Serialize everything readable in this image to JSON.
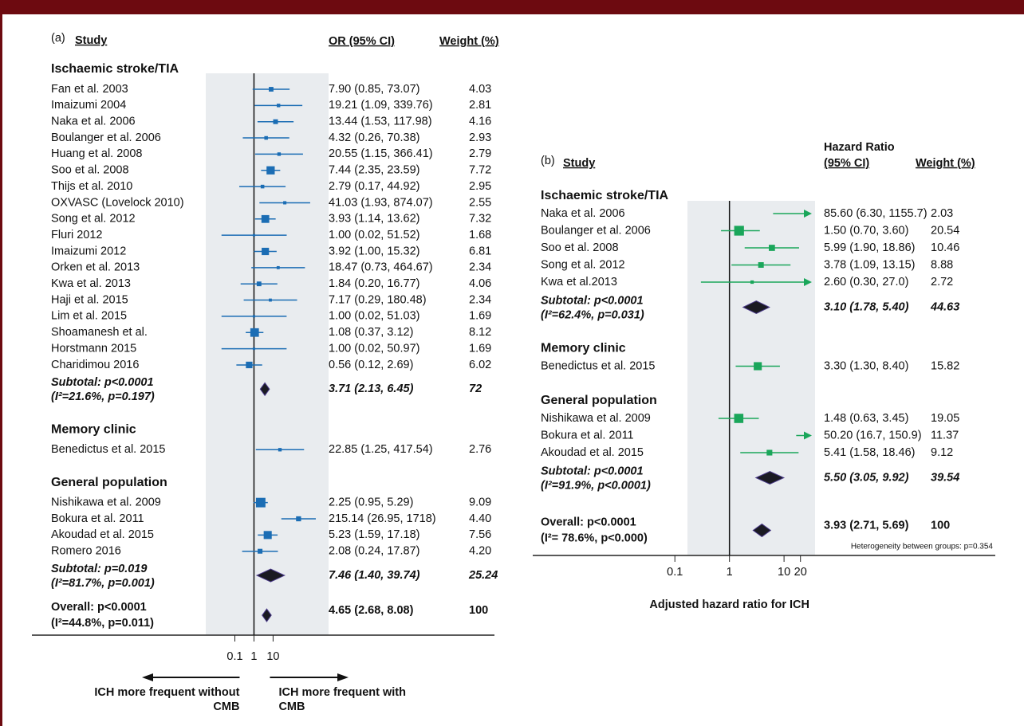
{
  "chart_data": [
    {
      "type": "forest",
      "panel_label": "(a)",
      "study_header": "Study",
      "estimate_header": [
        "OR (95% CI)"
      ],
      "weight_header": "Weight (%)",
      "color": "#1b6db4",
      "log_scale": true,
      "xlim": [
        0.003,
        8000
      ],
      "xticks": [
        0.1,
        1,
        10
      ],
      "reference": 1,
      "groups": [
        {
          "name": "Ischaemic stroke/TIA",
          "rows": [
            {
              "study": "Fan et al. 2003",
              "estimate": 7.9,
              "lo": 0.85,
              "hi": 73.07,
              "ci_label": "7.90 (0.85, 73.07)",
              "weight": 4.03
            },
            {
              "study": "Imaizumi 2004",
              "estimate": 19.21,
              "lo": 1.09,
              "hi": 339.76,
              "ci_label": "19.21 (1.09, 339.76)",
              "weight": 2.81
            },
            {
              "study": "Naka et al. 2006",
              "estimate": 13.44,
              "lo": 1.53,
              "hi": 117.98,
              "ci_label": "13.44 (1.53, 117.98)",
              "weight": 4.16
            },
            {
              "study": "Boulanger et al. 2006",
              "estimate": 4.32,
              "lo": 0.26,
              "hi": 70.38,
              "ci_label": "4.32 (0.26, 70.38)",
              "weight": 2.93
            },
            {
              "study": "Huang et al. 2008",
              "estimate": 20.55,
              "lo": 1.15,
              "hi": 366.41,
              "ci_label": "20.55 (1.15, 366.41)",
              "weight": 2.79
            },
            {
              "study": "Soo et al. 2008",
              "estimate": 7.44,
              "lo": 2.35,
              "hi": 23.59,
              "ci_label": "7.44 (2.35, 23.59)",
              "weight": 7.72
            },
            {
              "study": "Thijs et al. 2010",
              "estimate": 2.79,
              "lo": 0.17,
              "hi": 44.92,
              "ci_label": "2.79 (0.17, 44.92)",
              "weight": 2.95
            },
            {
              "study": "OXVASC (Lovelock 2010)",
              "estimate": 41.03,
              "lo": 1.93,
              "hi": 874.07,
              "ci_label": "41.03 (1.93, 874.07)",
              "weight": 2.55
            },
            {
              "study": "Song et al. 2012",
              "estimate": 3.93,
              "lo": 1.14,
              "hi": 13.62,
              "ci_label": "3.93 (1.14, 13.62)",
              "weight": 7.32
            },
            {
              "study": "Fluri 2012",
              "estimate": 1.0,
              "lo": 0.02,
              "hi": 51.52,
              "ci_label": "1.00 (0.02, 51.52)",
              "weight": 1.68
            },
            {
              "study": "Imaizumi 2012",
              "estimate": 3.92,
              "lo": 1.0,
              "hi": 15.32,
              "ci_label": "3.92 (1.00, 15.32)",
              "weight": 6.81
            },
            {
              "study": "Orken et al. 2013",
              "estimate": 18.47,
              "lo": 0.73,
              "hi": 464.67,
              "ci_label": "18.47 (0.73, 464.67)",
              "weight": 2.34
            },
            {
              "study": "Kwa et al. 2013",
              "estimate": 1.84,
              "lo": 0.2,
              "hi": 16.77,
              "ci_label": "1.84 (0.20, 16.77)",
              "weight": 4.06
            },
            {
              "study": "Haji et al. 2015",
              "estimate": 7.17,
              "lo": 0.29,
              "hi": 180.48,
              "ci_label": "7.17 (0.29, 180.48)",
              "weight": 2.34
            },
            {
              "study": "Lim et al. 2015",
              "estimate": 1.0,
              "lo": 0.02,
              "hi": 51.03,
              "ci_label": "1.00 (0.02, 51.03)",
              "weight": 1.69
            },
            {
              "study": "Shoamanesh et al.",
              "estimate": 1.08,
              "lo": 0.37,
              "hi": 3.12,
              "ci_label": "1.08 (0.37, 3.12)",
              "weight": 8.12
            },
            {
              "study": "Horstmann 2015",
              "estimate": 1.0,
              "lo": 0.02,
              "hi": 50.97,
              "ci_label": "1.00 (0.02, 50.97)",
              "weight": 1.69
            },
            {
              "study": "Charidimou 2016",
              "estimate": 0.56,
              "lo": 0.12,
              "hi": 2.69,
              "ci_label": "0.56 (0.12, 2.69)",
              "weight": 6.02
            }
          ],
          "subtotal": {
            "label": "Subtotal: p<0.0001",
            "heterogeneity": "(I²=21.6%, p=0.197)",
            "estimate": 3.71,
            "lo": 2.13,
            "hi": 6.45,
            "ci_label": "3.71 (2.13, 6.45)",
            "weight": 72
          }
        },
        {
          "name": "Memory clinic",
          "rows": [
            {
              "study": "Benedictus et al. 2015",
              "estimate": 22.85,
              "lo": 1.25,
              "hi": 417.54,
              "ci_label": "22.85 (1.25, 417.54)",
              "weight": 2.76
            }
          ]
        },
        {
          "name": "General population",
          "rows": [
            {
              "study": "Nishikawa et al. 2009",
              "estimate": 2.25,
              "lo": 0.95,
              "hi": 5.29,
              "ci_label": "2.25 (0.95, 5.29)",
              "weight": 9.09
            },
            {
              "study": "Bokura et al. 2011",
              "estimate": 215.14,
              "lo": 26.95,
              "hi": 1718,
              "ci_label": "215.14 (26.95, 1718)",
              "weight": 4.4,
              "weight_label": "4.40"
            },
            {
              "study": "Akoudad et al. 2015",
              "estimate": 5.23,
              "lo": 1.59,
              "hi": 17.18,
              "ci_label": "5.23 (1.59, 17.18)",
              "weight": 7.56
            },
            {
              "study": "Romero 2016",
              "estimate": 2.08,
              "lo": 0.24,
              "hi": 17.87,
              "ci_label": "2.08 (0.24, 17.87)",
              "weight": 4.2,
              "weight_label": "4.20"
            }
          ],
          "subtotal": {
            "label": "Subtotal: p=0.019",
            "heterogeneity": "(I²=81.7%, p=0.001)",
            "estimate": 7.46,
            "lo": 1.4,
            "hi": 39.74,
            "ci_label": "7.46 (1.40, 39.74)",
            "weight": 25.24
          }
        }
      ],
      "overall": {
        "label": "Overall: p<0.0001",
        "heterogeneity": "(I²=44.8%,  p=0.011)",
        "estimate": 4.65,
        "lo": 2.68,
        "hi": 8.08,
        "ci_label": "4.65 (2.68, 8.08)",
        "weight": 100
      },
      "arrow_labels": [
        [
          "ICH more frequent without",
          "CMB"
        ],
        [
          "ICH more frequent with",
          "CMB"
        ]
      ]
    },
    {
      "type": "forest",
      "panel_label": "(b)",
      "study_header": "Study",
      "estimate_header": [
        "Hazard Ratio",
        "(95% CI)"
      ],
      "weight_header": "Weight (%)",
      "color": "#1aa65a",
      "log_scale": true,
      "xlim": [
        0.17,
        37
      ],
      "xticks": [
        0.1,
        1,
        10,
        20
      ],
      "reference": 1,
      "groups": [
        {
          "name": "Ischaemic stroke/TIA",
          "rows": [
            {
              "study": "Naka et al. 2006",
              "estimate": 85.6,
              "lo": 6.3,
              "hi": 1155.7,
              "ci_label": "85.60 (6.30, 1155.7)",
              "weight": 2.03
            },
            {
              "study": "Boulanger et al. 2006",
              "estimate": 1.5,
              "lo": 0.7,
              "hi": 3.6,
              "ci_label": "1.50 (0.70, 3.60)",
              "weight": 20.54
            },
            {
              "study": "Soo et al. 2008",
              "estimate": 5.99,
              "lo": 1.9,
              "hi": 18.86,
              "ci_label": "5.99 (1.90, 18.86)",
              "weight": 10.46
            },
            {
              "study": "Song et al. 2012",
              "estimate": 3.78,
              "lo": 1.09,
              "hi": 13.15,
              "ci_label": "3.78 (1.09, 13.15)",
              "weight": 8.88
            },
            {
              "study": "Kwa et al.2013",
              "estimate": 2.6,
              "lo": 0.3,
              "hi": 27.0,
              "ci_label": "2.60 (0.30, 27.0)",
              "weight": 2.72
            }
          ],
          "subtotal": {
            "label": "Subtotal: p<0.0001",
            "heterogeneity": "(I²=62.4%, p=0.031)",
            "estimate": 3.1,
            "lo": 1.78,
            "hi": 5.4,
            "ci_label": "3.10 (1.78, 5.40)",
            "weight": 44.63
          }
        },
        {
          "name": "Memory clinic",
          "rows": [
            {
              "study": "Benedictus et al. 2015",
              "estimate": 3.3,
              "lo": 1.3,
              "hi": 8.4,
              "ci_label": "3.30 (1.30, 8.40)",
              "weight": 15.82
            }
          ]
        },
        {
          "name": "General population",
          "rows": [
            {
              "study": "Nishikawa et al. 2009",
              "estimate": 1.48,
              "lo": 0.63,
              "hi": 3.45,
              "ci_label": "1.48 (0.63, 3.45)",
              "weight": 19.05
            },
            {
              "study": "Bokura et al. 2011",
              "estimate": 50.2,
              "lo": 16.7,
              "hi": 150.9,
              "ci_label": "50.20 (16.7, 150.9)",
              "weight": 11.37
            },
            {
              "study": "Akoudad et al. 2015",
              "estimate": 5.41,
              "lo": 1.58,
              "hi": 18.46,
              "ci_label": "5.41 (1.58, 18.46)",
              "weight": 9.12
            }
          ],
          "subtotal": {
            "label": "Subtotal: p<0.0001",
            "heterogeneity": "(I²=91.9%, p<0.0001)",
            "estimate": 5.5,
            "lo": 3.05,
            "hi": 9.92,
            "ci_label": "5.50 (3.05, 9.92)",
            "weight": 39.54
          }
        }
      ],
      "overall": {
        "label": "Overall: p<0.0001",
        "heterogeneity": "(I²= 78.6%, p<0.000)",
        "estimate": 3.93,
        "lo": 2.71,
        "hi": 5.69,
        "ci_label": "3.93 (2.71, 5.69)",
        "weight": 100
      },
      "note": "Heterogeneity between groups: p=0.354",
      "xlabel": "Adjusted hazard ratio for ICH"
    }
  ]
}
